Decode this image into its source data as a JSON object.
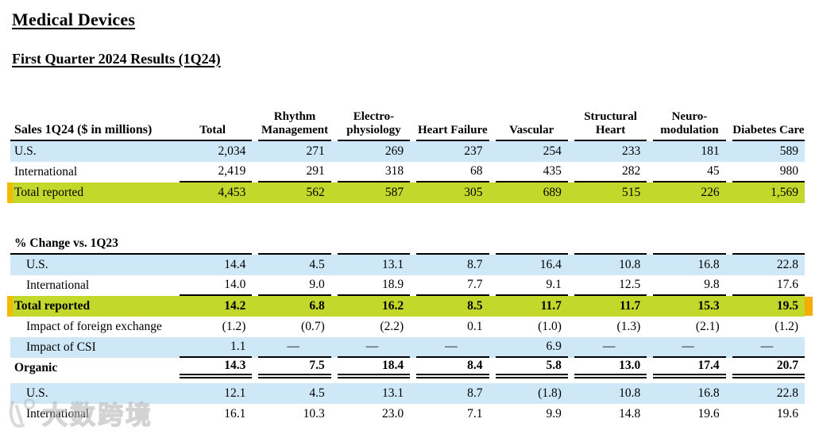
{
  "page": {
    "title": "Medical Devices",
    "subtitle": "First Quarter 2024 Results (1Q24)"
  },
  "table": {
    "sales_label": "Sales  1Q24 ($ in millions)",
    "columns": [
      "Total",
      "Rhythm Management",
      "Electro- physiology",
      "Heart Failure",
      "Vascular",
      "Structural Heart",
      "Neuro- modulation",
      "Diabetes Care"
    ],
    "sales_rows": [
      {
        "label": "U.S.",
        "values": [
          "2,034",
          "271",
          "269",
          "237",
          "254",
          "233",
          "181",
          "589"
        ]
      },
      {
        "label": "International",
        "values": [
          "2,419",
          "291",
          "318",
          "68",
          "435",
          "282",
          "45",
          "980"
        ]
      },
      {
        "label": "Total reported",
        "values": [
          "4,453",
          "562",
          "587",
          "305",
          "689",
          "515",
          "226",
          "1,569"
        ]
      }
    ],
    "change_label": "% Change vs. 1Q23",
    "change_rows": [
      {
        "label": "U.S.",
        "values": [
          "14.4",
          "4.5",
          "13.1",
          "8.7",
          "16.4",
          "10.8",
          "16.8",
          "22.8"
        ]
      },
      {
        "label": "International",
        "values": [
          "14.0",
          "9.0",
          "18.9",
          "7.7",
          "9.1",
          "12.5",
          "9.8",
          "17.6"
        ]
      },
      {
        "label": "Total reported",
        "values": [
          "14.2",
          "6.8",
          "16.2",
          "8.5",
          "11.7",
          "11.7",
          "15.3",
          "19.5"
        ]
      },
      {
        "label": "Impact of foreign exchange",
        "values": [
          "(1.2)",
          "(0.7)",
          "(2.2)",
          "0.1",
          "(1.0)",
          "(1.3)",
          "(2.1)",
          "(1.2)"
        ]
      },
      {
        "label": "Impact of CSI",
        "values": [
          "1.1",
          "—",
          "—",
          "—",
          "6.9",
          "—",
          "—",
          "—"
        ]
      },
      {
        "label": "Organic",
        "values": [
          "14.3",
          "7.5",
          "18.4",
          "8.4",
          "5.8",
          "13.0",
          "17.4",
          "20.7"
        ]
      }
    ],
    "bottom_rows": [
      {
        "label": "U.S.",
        "values": [
          "12.1",
          "4.5",
          "13.1",
          "8.7",
          "(1.8)",
          "10.8",
          "16.8",
          "22.8"
        ]
      },
      {
        "label": "International",
        "values": [
          "16.1",
          "10.3",
          "23.0",
          "7.1",
          "9.9",
          "14.8",
          "19.6",
          "19.6"
        ]
      }
    ]
  },
  "colors": {
    "highlight_blue": "#cee8f8",
    "highlight_green": "#c4d82c",
    "highlight_edge_orange": "#f0bb00",
    "rule_black": "#000000"
  },
  "watermark": {
    "text": "大数跨境"
  }
}
